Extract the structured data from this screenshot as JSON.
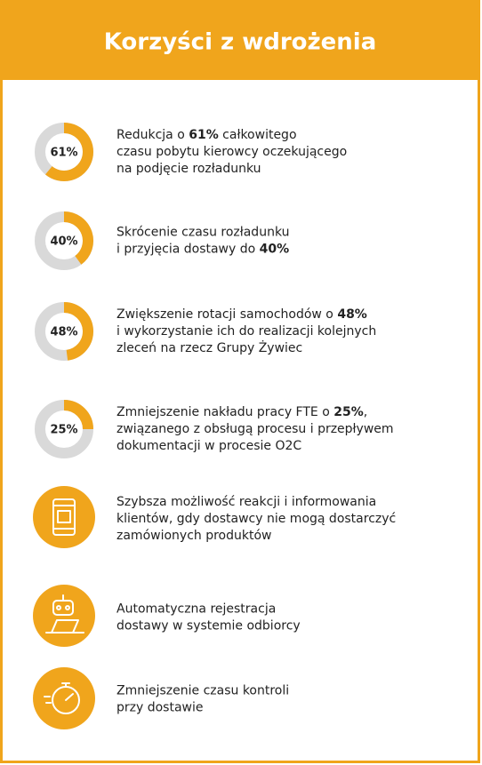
{
  "header": {
    "title": "Korzyści z wdrożenia"
  },
  "items": [
    {
      "value": 61,
      "value_label": "61%",
      "lines": [
        [
          {
            "text": "Redukcja o "
          },
          {
            "text": "61%",
            "bold": true
          },
          {
            "text": " całkowitego"
          }
        ],
        [
          {
            "text": "czasu pobytu kierowcy oczekującego"
          }
        ],
        [
          {
            "text": "na podjęcie rozładunku"
          }
        ]
      ]
    },
    {
      "value": 40,
      "value_label": "40%",
      "lines": [
        [
          {
            "text": "Skrócenie czasu rozładunku"
          }
        ],
        [
          {
            "text": "i przyjęcia dostawy do "
          },
          {
            "text": "40%",
            "bold": true
          }
        ]
      ]
    },
    {
      "value": 48,
      "value_label": "48%",
      "lines": [
        [
          {
            "text": "Zwiększenie rotacji samochodów o "
          },
          {
            "text": "48%",
            "bold": true
          }
        ],
        [
          {
            "text": "i wykorzystanie ich do realizacji kolejnych"
          }
        ],
        [
          {
            "text": "zleceń na rzecz Grupy Żywiec"
          }
        ]
      ]
    },
    {
      "value": 25,
      "value_label": "25%",
      "lines": [
        [
          {
            "text": "Zmniejszenie nakładu pracy FTE o "
          },
          {
            "text": "25%",
            "bold": true
          },
          {
            "text": ","
          }
        ],
        [
          {
            "text": "związanego z obsługą procesu i przepływem"
          }
        ],
        [
          {
            "text": "dokumentacji w procesie O2C"
          }
        ]
      ]
    },
    {
      "lines": [
        [
          {
            "text": "Szybsza możliwość reakcji i informowania"
          }
        ],
        [
          {
            "text": "klientów, gdy dostawcy nie mogą dostarczyć"
          }
        ],
        [
          {
            "text": "zamówionych produktów"
          }
        ]
      ]
    },
    {
      "lines": [
        [
          {
            "text": "Automatyczna rejestracja"
          }
        ],
        [
          {
            "text": "dostawy w systemie odbiorcy"
          }
        ]
      ]
    },
    {
      "lines": [
        [
          {
            "text": "Zmniejszenie czasu kontroli"
          }
        ],
        [
          {
            "text": "przy dostawie"
          }
        ]
      ]
    }
  ]
}
